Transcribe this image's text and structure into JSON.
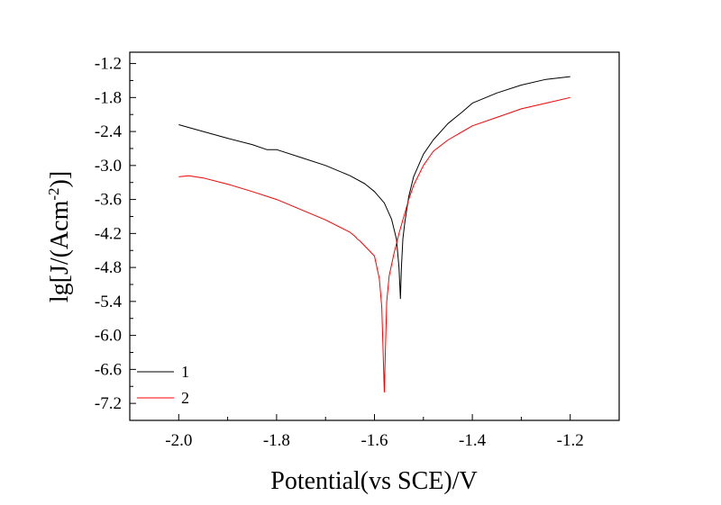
{
  "chart_data": {
    "type": "line",
    "xlabel": "Potential(vs SCE)/V",
    "ylabel_parts": {
      "main": "lg[J/(Acm",
      "sup": "-2",
      "tail": ")]"
    },
    "xlim": [
      -2.1,
      -1.1
    ],
    "ylim": [
      -7.5,
      -1.0
    ],
    "x_ticks": [
      -2.0,
      -1.8,
      -1.6,
      -1.4,
      -1.2
    ],
    "x_tick_labels": [
      "-2.0",
      "-1.8",
      "-1.6",
      "-1.4",
      "-1.2"
    ],
    "y_ticks": [
      -1.2,
      -1.8,
      -2.4,
      -3.0,
      -3.6,
      -4.2,
      -4.8,
      -5.4,
      -6.0,
      -6.6,
      -7.2
    ],
    "y_tick_labels": [
      "-1.2",
      "-1.8",
      "-2.4",
      "-3.0",
      "-3.6",
      "-4.2",
      "-4.8",
      "-5.4",
      "-6.0",
      "-6.6",
      "-7.2"
    ],
    "grid": false,
    "legend_position": "bottom-left",
    "series": [
      {
        "name": "1",
        "color": "#000000",
        "x": [
          -2.0,
          -1.95,
          -1.9,
          -1.85,
          -1.82,
          -1.8,
          -1.75,
          -1.7,
          -1.65,
          -1.62,
          -1.6,
          -1.58,
          -1.565,
          -1.555,
          -1.55,
          -1.547,
          -1.545,
          -1.542,
          -1.538,
          -1.53,
          -1.52,
          -1.5,
          -1.48,
          -1.45,
          -1.42,
          -1.4,
          -1.35,
          -1.3,
          -1.25,
          -1.2
        ],
        "y": [
          -2.28,
          -2.4,
          -2.52,
          -2.63,
          -2.72,
          -2.72,
          -2.86,
          -3.0,
          -3.18,
          -3.32,
          -3.46,
          -3.66,
          -3.95,
          -4.3,
          -4.8,
          -5.35,
          -4.8,
          -4.3,
          -4.0,
          -3.55,
          -3.2,
          -2.8,
          -2.55,
          -2.26,
          -2.05,
          -1.9,
          -1.72,
          -1.58,
          -1.48,
          -1.43
        ]
      },
      {
        "name": "2",
        "color": "#ff0000",
        "x": [
          -2.0,
          -1.98,
          -1.95,
          -1.9,
          -1.85,
          -1.8,
          -1.75,
          -1.7,
          -1.65,
          -1.64,
          -1.635,
          -1.63,
          -1.6,
          -1.59,
          -1.585,
          -1.582,
          -1.58,
          -1.578,
          -1.575,
          -1.57,
          -1.56,
          -1.55,
          -1.54,
          -1.53,
          -1.52,
          -1.5,
          -1.48,
          -1.45,
          -1.4,
          -1.35,
          -1.3,
          -1.25,
          -1.2
        ],
        "y": [
          -3.2,
          -3.18,
          -3.22,
          -3.33,
          -3.46,
          -3.6,
          -3.78,
          -3.96,
          -4.18,
          -4.25,
          -4.3,
          -4.33,
          -4.6,
          -5.0,
          -5.5,
          -6.4,
          -7.0,
          -6.4,
          -5.4,
          -4.95,
          -4.55,
          -4.2,
          -3.9,
          -3.6,
          -3.35,
          -3.0,
          -2.75,
          -2.55,
          -2.3,
          -2.15,
          -2.0,
          -1.9,
          -1.8
        ]
      }
    ]
  }
}
